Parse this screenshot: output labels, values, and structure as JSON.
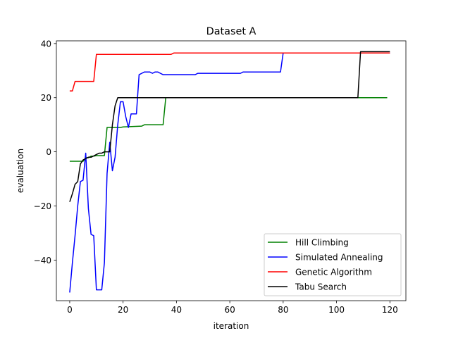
{
  "chart_data": {
    "type": "line",
    "title": "Dataset A",
    "xlabel": "iteration",
    "ylabel": "evaluation",
    "xlim": [
      -5,
      126
    ],
    "ylim": [
      -55,
      41
    ],
    "x_ticks": [
      0,
      20,
      40,
      60,
      80,
      100,
      120
    ],
    "y_ticks": [
      -40,
      -20,
      0,
      20,
      40
    ],
    "grid": false,
    "legend_position": "lower-right",
    "series": [
      {
        "name": "Hill Climbing",
        "color": "#008000",
        "x": [
          0,
          5,
          6,
          7,
          8,
          9,
          10,
          13,
          14,
          19,
          20,
          27,
          28,
          35,
          36,
          37,
          119
        ],
        "y": [
          -3.5,
          -3.5,
          -2.2,
          -2.2,
          -1.6,
          -1.6,
          -1.4,
          -1.4,
          9,
          9,
          9.2,
          9.5,
          10,
          10,
          20,
          20,
          20
        ]
      },
      {
        "name": "Simulated Annealing",
        "color": "#0000ff",
        "x": [
          0,
          1,
          2,
          3,
          4,
          5,
          6,
          7,
          8,
          9,
          10,
          11,
          12,
          13,
          14,
          15,
          16,
          17,
          18,
          19,
          20,
          21,
          22,
          23,
          24,
          25,
          26,
          27,
          28,
          29,
          30,
          31,
          32,
          33,
          34,
          35,
          36,
          40,
          47,
          48,
          64,
          65,
          79,
          80,
          120
        ],
        "y": [
          -52,
          -41,
          -31,
          -20,
          -11,
          -10.5,
          -0.5,
          -21,
          -30.5,
          -31,
          -51,
          -51,
          -51,
          -41,
          -8,
          3.5,
          -7,
          -2,
          10,
          18.5,
          18.5,
          13,
          9,
          14,
          14,
          14,
          28.5,
          29,
          29.5,
          29.5,
          29.5,
          29,
          29.5,
          29.5,
          29,
          28.5,
          28.5,
          28.5,
          28.5,
          29,
          29,
          29.5,
          29.5,
          36.5,
          36.5
        ]
      },
      {
        "name": "Genetic Algorithm",
        "color": "#ff0000",
        "x": [
          0,
          1,
          2,
          3,
          9,
          10,
          38,
          39,
          120
        ],
        "y": [
          22.5,
          22.5,
          26,
          26,
          26,
          36,
          36,
          36.5,
          36.5
        ]
      },
      {
        "name": "Tabu Search",
        "color": "#000000",
        "x": [
          0,
          1,
          2,
          3,
          4,
          5,
          6,
          7,
          8,
          9,
          10,
          11,
          12,
          13,
          14,
          15,
          16,
          17,
          18,
          19,
          108,
          109,
          120
        ],
        "y": [
          -18.5,
          -15.5,
          -12,
          -11,
          -4.5,
          -3,
          -2.5,
          -2,
          -2,
          -1.5,
          -1,
          -0.5,
          -0.5,
          0,
          0,
          0,
          10,
          17,
          20,
          20,
          20,
          37,
          37
        ]
      }
    ]
  }
}
